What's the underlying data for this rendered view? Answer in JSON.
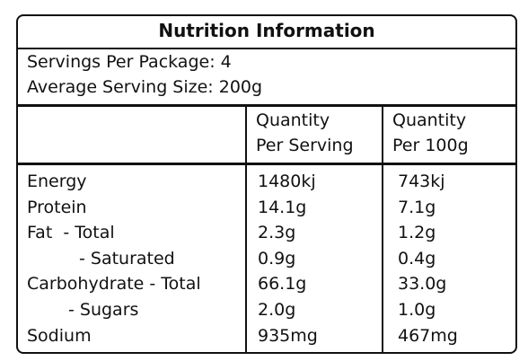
{
  "title": "Nutrition Information",
  "servings_per_package": "Servings Per Package: 4",
  "serving_size": "Average Serving Size: 200g",
  "table": {
    "header": [
      "Quantity\nPer Serving",
      "Quantity\nPer 100g"
    ],
    "rows": [
      [
        "Energy",
        "1480kj",
        "743kj"
      ],
      [
        "Protein",
        "14.1g",
        "7.1g"
      ],
      [
        "Fat  - Total",
        "2.3g",
        "1.2g"
      ],
      [
        "- Saturated",
        "0.9g",
        "0.4g"
      ],
      [
        "Carbohydrate - Total",
        "66.1g",
        "33.0g"
      ],
      [
        "- Sugars",
        "2.0g",
        "1.0g"
      ],
      [
        "Sodium",
        "935mg",
        "467mg"
      ]
    ]
  }
}
